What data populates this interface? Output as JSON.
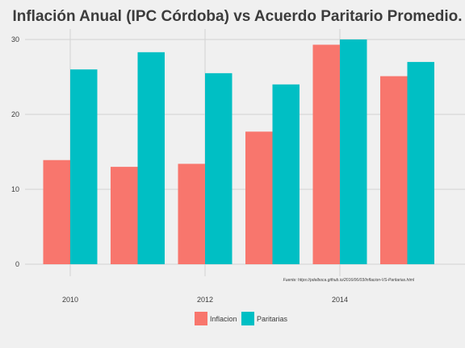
{
  "chart_data": {
    "type": "bar",
    "title": "Inflación Anual (IPC Córdoba) vs Acuerdo Paritario Promedio.",
    "xlabel": "",
    "ylabel": "",
    "x": [
      2010,
      2011,
      2012,
      2013,
      2014,
      2015
    ],
    "x_ticks": [
      "2010",
      "2012",
      "2014"
    ],
    "x_tick_values": [
      2010,
      2012,
      2014
    ],
    "ylim": [
      0,
      31
    ],
    "y_ticks": [
      "0",
      "10",
      "20",
      "30"
    ],
    "y_tick_values": [
      0,
      10,
      20,
      30
    ],
    "grid": true,
    "legend_position": "bottom",
    "series": [
      {
        "name": "Inflacion",
        "color": "#f8766d",
        "values": [
          13.9,
          13.0,
          13.4,
          17.7,
          29.3,
          25.1
        ]
      },
      {
        "name": "Paritarias",
        "color": "#00bfc4",
        "values": [
          26.0,
          28.3,
          25.5,
          24.0,
          30.0,
          27.0
        ]
      }
    ],
    "annotation": "Fuente: https://pdelboca.github.io/2016/06/03/Inflacion-VS-Paritarias.html"
  }
}
